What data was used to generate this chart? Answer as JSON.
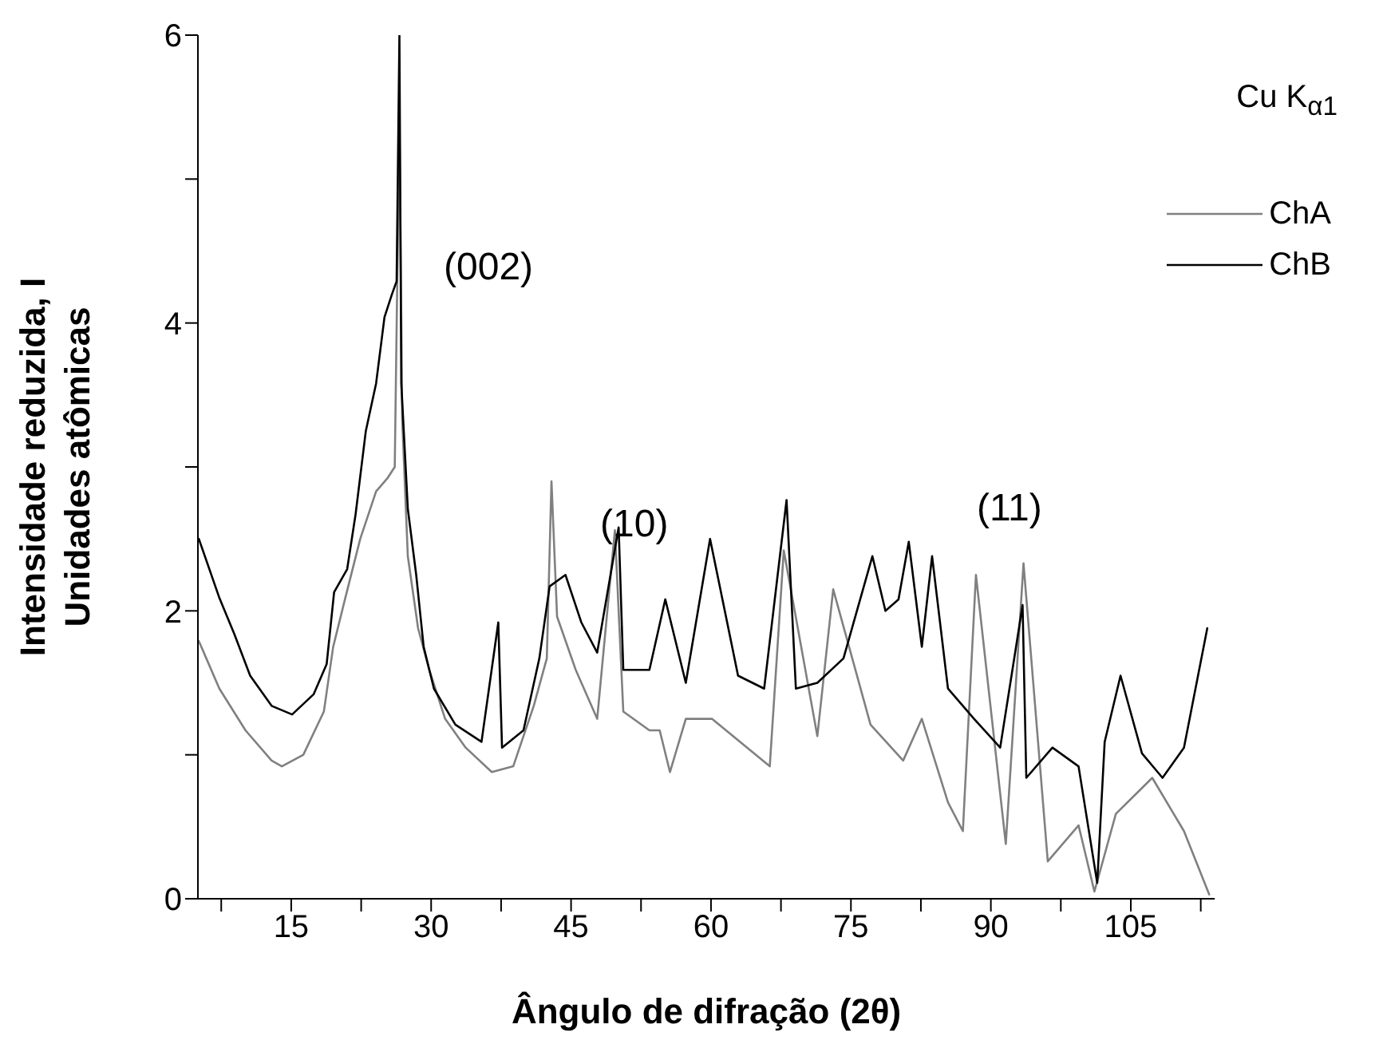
{
  "chart_data": {
    "type": "line",
    "xlabel": "Ângulo de difração (2θ)",
    "ylabel": "Intensidade reduzida, I\nUnidades atômicas",
    "xlim": [
      5,
      114
    ],
    "ylim": [
      0,
      6
    ],
    "xticks": [
      {
        "value": 7.5,
        "label": null
      },
      15,
      {
        "value": 22.5,
        "label": null
      },
      30,
      {
        "value": 37.5,
        "label": null
      },
      45,
      {
        "value": 52.5,
        "label": null
      },
      60,
      {
        "value": 67.5,
        "label": null
      },
      75,
      {
        "value": 82.5,
        "label": null
      },
      90,
      {
        "value": 97.5,
        "label": null
      },
      105,
      {
        "value": 112.5,
        "label": null
      }
    ],
    "yticks": [
      0,
      {
        "value": 1,
        "label": null
      },
      2,
      {
        "value": 3,
        "label": null
      },
      4,
      {
        "value": 5,
        "label": null
      },
      6
    ],
    "legend": "top right",
    "marker": "none",
    "line_style": "solid",
    "grid": false,
    "annotations": [
      "Cu K$_{α1}$",
      "(002)",
      "(10)",
      "(11)"
    ],
    "series": [
      {
        "name": "ChA",
        "color": "#808080",
        "x": [
          5.1,
          7.3,
          10.1,
          12.9,
          14.0,
          16.3,
          18.5,
          19.5,
          20.8,
          22.4,
          24.1,
          25.3,
          26.1,
          26.6,
          26.9,
          27.5,
          28.6,
          29.8,
          31.5,
          33.7,
          36.5,
          38.8,
          41.0,
          42.4,
          42.9,
          43.5,
          45.5,
          47.8,
          49.7,
          50.6,
          53.4,
          54.5,
          55.6,
          57.3,
          60.1,
          66.3,
          67.8,
          71.4,
          73.1,
          77.1,
          80.6,
          82.6,
          85.4,
          87.0,
          88.4,
          91.6,
          93.5,
          96.1,
          99.4,
          101.1,
          103.4,
          107.3,
          110.7,
          113.4
        ],
        "values": [
          1.79,
          1.46,
          1.17,
          0.96,
          0.92,
          1.0,
          1.3,
          1.75,
          2.09,
          2.5,
          2.83,
          2.92,
          3.0,
          5.4,
          3.33,
          2.38,
          1.88,
          1.59,
          1.25,
          1.05,
          0.88,
          0.92,
          1.34,
          1.67,
          2.9,
          1.96,
          1.59,
          1.25,
          2.56,
          1.3,
          1.17,
          1.17,
          0.88,
          1.25,
          1.25,
          0.92,
          2.42,
          1.13,
          2.15,
          1.21,
          0.96,
          1.25,
          0.67,
          0.47,
          2.25,
          0.38,
          2.33,
          0.26,
          0.51,
          0.05,
          0.59,
          0.84,
          0.47,
          0.03
        ]
      },
      {
        "name": "ChB",
        "color": "#000000",
        "x": [
          5.1,
          7.3,
          8.9,
          10.6,
          12.9,
          15.1,
          17.4,
          18.8,
          19.6,
          21.0,
          21.9,
          23.0,
          24.1,
          25.0,
          25.8,
          26.3,
          26.6,
          26.8,
          27.5,
          28.4,
          29.2,
          30.3,
          32.6,
          35.4,
          37.2,
          37.6,
          39.9,
          41.6,
          42.7,
          44.4,
          46.1,
          47.8,
          50.1,
          50.6,
          53.4,
          55.1,
          57.3,
          59.9,
          62.9,
          65.7,
          68.1,
          69.1,
          71.4,
          74.2,
          77.3,
          78.7,
          80.1,
          81.2,
          82.6,
          83.7,
          85.4,
          88.2,
          91.0,
          93.4,
          93.8,
          96.6,
          99.4,
          101.4,
          102.2,
          103.9,
          106.2,
          108.4,
          110.7,
          113.2
        ],
        "values": [
          2.5,
          2.09,
          1.84,
          1.55,
          1.34,
          1.28,
          1.42,
          1.63,
          2.13,
          2.29,
          2.67,
          3.25,
          3.58,
          4.04,
          4.2,
          4.29,
          6.0,
          3.58,
          2.71,
          2.25,
          1.75,
          1.46,
          1.21,
          1.09,
          1.92,
          1.05,
          1.17,
          1.67,
          2.17,
          2.25,
          1.92,
          1.71,
          2.58,
          1.59,
          1.59,
          2.08,
          1.5,
          2.5,
          1.55,
          1.46,
          2.77,
          1.46,
          1.5,
          1.67,
          2.38,
          2.0,
          2.08,
          2.48,
          1.75,
          2.38,
          1.46,
          1.25,
          1.05,
          2.04,
          0.84,
          1.05,
          0.92,
          0.11,
          1.09,
          1.55,
          1.01,
          0.84,
          1.05,
          1.88
        ]
      }
    ]
  }
}
